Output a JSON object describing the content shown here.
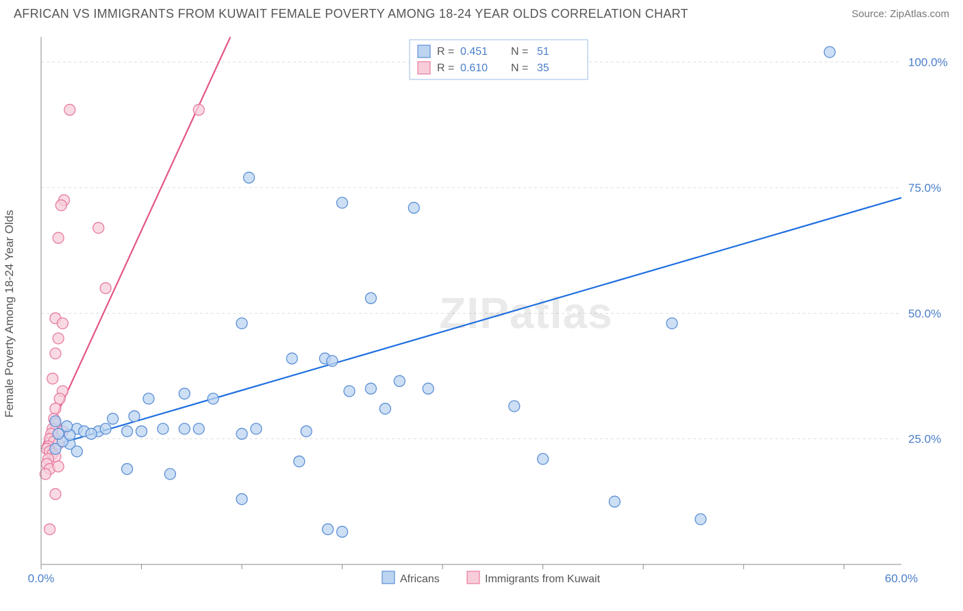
{
  "header": {
    "title": "AFRICAN VS IMMIGRANTS FROM KUWAIT FEMALE POVERTY AMONG 18-24 YEAR OLDS CORRELATION CHART",
    "source_prefix": "Source: ",
    "source_name": "ZipAtlas.com"
  },
  "ylabel": "Female Poverty Among 18-24 Year Olds",
  "watermark": "ZIPatlas",
  "axes": {
    "xlim": [
      0,
      60
    ],
    "ylim": [
      0,
      105
    ],
    "xticks": [
      0,
      7,
      14,
      21,
      28,
      35,
      42,
      49,
      56
    ],
    "xticks_labeled": [
      0,
      60
    ],
    "xticks_labels": [
      "0.0%",
      "60.0%"
    ],
    "yticks": [
      25,
      50,
      75,
      100
    ],
    "yticks_labels": [
      "25.0%",
      "50.0%",
      "75.0%",
      "100.0%"
    ],
    "grid_color": "#dddddd",
    "axis_color": "#888888",
    "tick_label_color": "#4a7ec9"
  },
  "series": {
    "africans": {
      "label": "Africans",
      "marker_fill": "#bcd4f0",
      "marker_stroke": "#5b8fd6",
      "line_color": "#1f6fe0",
      "marker_radius": 8,
      "line_width": 2.2,
      "trend": {
        "x1": 0,
        "y1": 23,
        "x2": 60,
        "y2": 73
      },
      "R": "0.451",
      "N": "51",
      "points": [
        [
          55.0,
          102.0
        ],
        [
          44.0,
          48.0
        ],
        [
          23.0,
          53.0
        ],
        [
          26.0,
          71.0
        ],
        [
          21.0,
          72.0
        ],
        [
          14.5,
          77.0
        ],
        [
          14.0,
          48.0
        ],
        [
          17.5,
          41.0
        ],
        [
          19.8,
          41.0
        ],
        [
          20.3,
          40.5
        ],
        [
          21.5,
          34.5
        ],
        [
          23.0,
          35.0
        ],
        [
          25.0,
          36.5
        ],
        [
          27.0,
          35.0
        ],
        [
          24.0,
          31.0
        ],
        [
          33.0,
          31.5
        ],
        [
          35.0,
          21.0
        ],
        [
          40.0,
          12.5
        ],
        [
          46.0,
          9.0
        ],
        [
          18.0,
          20.5
        ],
        [
          20.0,
          7.0
        ],
        [
          21.0,
          6.5
        ],
        [
          14.0,
          13.0
        ],
        [
          14.0,
          26.0
        ],
        [
          12.0,
          33.0
        ],
        [
          10.0,
          34.0
        ],
        [
          7.0,
          26.5
        ],
        [
          7.5,
          33.0
        ],
        [
          6.0,
          19.0
        ],
        [
          9.0,
          18.0
        ],
        [
          10.0,
          27.0
        ],
        [
          11.0,
          27.0
        ],
        [
          4.0,
          26.5
        ],
        [
          2.5,
          27.0
        ],
        [
          3.0,
          26.5
        ],
        [
          2.0,
          24.0
        ],
        [
          3.5,
          26.0
        ],
        [
          6.0,
          26.5
        ],
        [
          4.5,
          27.0
        ],
        [
          1.0,
          23.0
        ],
        [
          1.5,
          24.5
        ],
        [
          2.0,
          25.8
        ],
        [
          2.5,
          22.5
        ],
        [
          1.2,
          26.0
        ],
        [
          1.8,
          27.5
        ],
        [
          5.0,
          29.0
        ],
        [
          6.5,
          29.5
        ],
        [
          8.5,
          27.0
        ],
        [
          18.5,
          26.5
        ],
        [
          15.0,
          27.0
        ],
        [
          1.0,
          28.5
        ]
      ]
    },
    "kuwait": {
      "label": "Immigrants from Kuwait",
      "marker_fill": "#f7cdd9",
      "marker_stroke": "#e87ba0",
      "line_color": "#e35585",
      "marker_radius": 8,
      "line_width": 2.2,
      "trend": {
        "x1": 0,
        "y1": 23,
        "x2": 13.2,
        "y2": 105
      },
      "R": "0.610",
      "N": "35",
      "points": [
        [
          11.0,
          90.5
        ],
        [
          2.0,
          90.5
        ],
        [
          1.6,
          72.5
        ],
        [
          1.4,
          71.5
        ],
        [
          4.0,
          67.0
        ],
        [
          1.2,
          65.0
        ],
        [
          4.5,
          55.0
        ],
        [
          1.0,
          49.0
        ],
        [
          1.5,
          48.0
        ],
        [
          1.2,
          45.0
        ],
        [
          1.0,
          42.0
        ],
        [
          0.8,
          37.0
        ],
        [
          1.5,
          34.5
        ],
        [
          1.3,
          33.0
        ],
        [
          1.0,
          31.0
        ],
        [
          0.9,
          29.0
        ],
        [
          1.0,
          28.0
        ],
        [
          0.8,
          27.0
        ],
        [
          0.7,
          26.0
        ],
        [
          0.6,
          25.0
        ],
        [
          0.9,
          24.5
        ],
        [
          1.2,
          24.0
        ],
        [
          0.5,
          23.5
        ],
        [
          0.4,
          23.0
        ],
        [
          0.6,
          22.5
        ],
        [
          0.8,
          22.0
        ],
        [
          1.0,
          21.5
        ],
        [
          0.5,
          21.0
        ],
        [
          0.4,
          20.0
        ],
        [
          0.6,
          19.0
        ],
        [
          0.3,
          18.0
        ],
        [
          1.0,
          14.0
        ],
        [
          0.6,
          7.0
        ],
        [
          1.2,
          19.5
        ],
        [
          1.5,
          26.5
        ]
      ]
    }
  },
  "legend_top": {
    "R_label": "R =",
    "N_label": "N =",
    "value_color": "#4a7ec9",
    "label_color": "#555555",
    "border_color": "#9bbde6",
    "bg_color": "#ffffff"
  },
  "legend_bottom": {
    "label_color": "#555555"
  }
}
